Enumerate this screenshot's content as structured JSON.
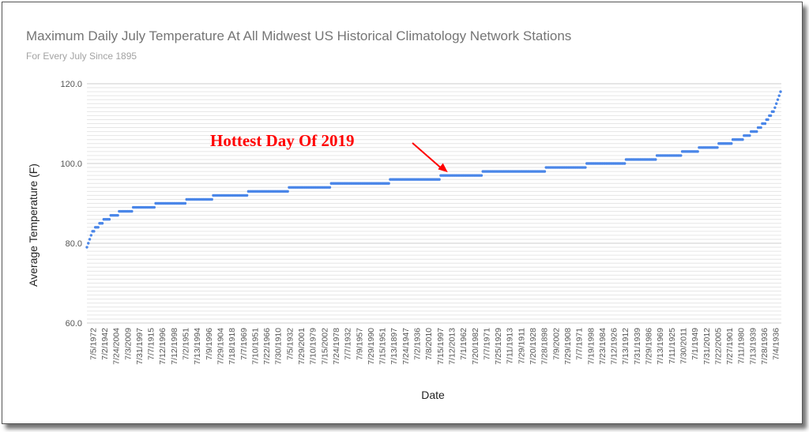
{
  "chart_data": {
    "type": "scatter",
    "title": "Maximum Daily July Temperature At All Midwest US Historical Climatology Network Stations",
    "subtitle": "For  Every July  Since 1895",
    "xlabel": "Date",
    "ylabel": "Average Temperature (F)",
    "ylim": [
      60,
      120
    ],
    "y_ticks": [
      {
        "value": 60,
        "label": "60.0"
      },
      {
        "value": 80,
        "label": "80.0"
      },
      {
        "value": 100,
        "label": "100.0"
      },
      {
        "value": 120,
        "label": "120.0"
      }
    ],
    "minor_grid_step": 1,
    "grid": true,
    "legend": "none",
    "x_tick_labels": [
      "7/5/1972",
      "7/2/1942",
      "7/24/2004",
      "7/3/2009",
      "7/31/1997",
      "7/7/1915",
      "7/12/1996",
      "7/12/1998",
      "7/2/1951",
      "7/13/1994",
      "7/9/1996",
      "7/29/1904",
      "7/18/1918",
      "7/7/1969",
      "7/10/1951",
      "7/22/1966",
      "7/30/1910",
      "7/5/1932",
      "7/29/2001",
      "7/10/1979",
      "7/15/2002",
      "7/24/1978",
      "7/7/1932",
      "7/9/1957",
      "7/29/1990",
      "7/15/1951",
      "7/13/1897",
      "7/24/1947",
      "7/2/1936",
      "7/8/2010",
      "7/15/1997",
      "7/12/2013",
      "7/1/1962",
      "7/20/1982",
      "7/7/1971",
      "7/25/1929",
      "7/11/1913",
      "7/29/1911",
      "7/20/1928",
      "7/28/1898",
      "7/9/2002",
      "7/29/1908",
      "7/7/1971",
      "7/19/1998",
      "7/23/1984",
      "7/12/1926",
      "7/13/1912",
      "7/31/1939",
      "7/29/1986",
      "7/13/1969",
      "7/11/1925",
      "7/30/2011",
      "7/1/1949",
      "7/31/2012",
      "7/22/2005",
      "7/27/1901",
      "7/11/1980",
      "7/13/1939",
      "7/28/1936",
      "7/4/1936"
    ],
    "steps": [
      {
        "value": 79,
        "count": 1
      },
      {
        "value": 80,
        "count": 1
      },
      {
        "value": 81,
        "count": 1
      },
      {
        "value": 82,
        "count": 1
      },
      {
        "value": 83,
        "count": 2
      },
      {
        "value": 84,
        "count": 3
      },
      {
        "value": 85,
        "count": 3
      },
      {
        "value": 86,
        "count": 5
      },
      {
        "value": 87,
        "count": 6
      },
      {
        "value": 88,
        "count": 10
      },
      {
        "value": 89,
        "count": 16
      },
      {
        "value": 90,
        "count": 22
      },
      {
        "value": 91,
        "count": 19
      },
      {
        "value": 92,
        "count": 25
      },
      {
        "value": 93,
        "count": 29
      },
      {
        "value": 94,
        "count": 30
      },
      {
        "value": 95,
        "count": 42
      },
      {
        "value": 96,
        "count": 36
      },
      {
        "value": 97,
        "count": 30
      },
      {
        "value": 98,
        "count": 45
      },
      {
        "value": 99,
        "count": 29
      },
      {
        "value": 100,
        "count": 28
      },
      {
        "value": 101,
        "count": 22
      },
      {
        "value": 102,
        "count": 18
      },
      {
        "value": 103,
        "count": 12
      },
      {
        "value": 104,
        "count": 14
      },
      {
        "value": 105,
        "count": 10
      },
      {
        "value": 106,
        "count": 8
      },
      {
        "value": 107,
        "count": 5
      },
      {
        "value": 108,
        "count": 5
      },
      {
        "value": 109,
        "count": 3
      },
      {
        "value": 110,
        "count": 3
      },
      {
        "value": 111,
        "count": 2
      },
      {
        "value": 112,
        "count": 2
      },
      {
        "value": 113,
        "count": 2
      },
      {
        "value": 114,
        "count": 1
      },
      {
        "value": 115,
        "count": 1
      },
      {
        "value": 116,
        "count": 1
      },
      {
        "value": 117,
        "count": 1
      },
      {
        "value": 118,
        "count": 1
      }
    ],
    "annotation": {
      "text": "Hottest Day Of 2019",
      "value": 97,
      "color": "#ff0000"
    },
    "series_color": "#4a86e8"
  }
}
